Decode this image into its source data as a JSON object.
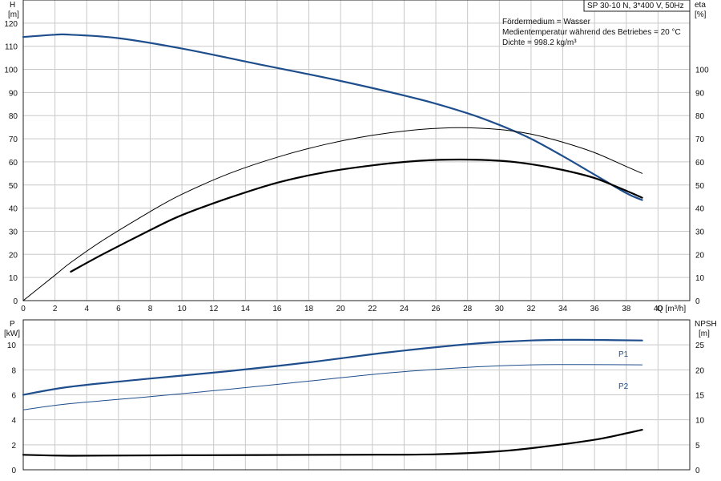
{
  "legend_box": "SP 30-10 N, 3*400 V, 50Hz",
  "info_lines": [
    "Fördermedium = Wasser",
    "Medientemperatur während des Betriebes = 20 °C",
    "Dichte = 998.2 kg/m³"
  ],
  "chart_data": [
    {
      "type": "line",
      "panel": "top",
      "xlabel": "Q [m³/h]",
      "ylabel_left": [
        "H",
        "[m]"
      ],
      "ylabel_right": [
        "eta",
        "[%]"
      ],
      "xlim": [
        0,
        42
      ],
      "ylim_left": [
        0,
        130
      ],
      "ylim_right": [
        0,
        130
      ],
      "x_ticks": [
        0,
        2,
        4,
        6,
        8,
        10,
        12,
        14,
        16,
        18,
        20,
        22,
        24,
        26,
        28,
        30,
        32,
        34,
        36,
        38,
        40
      ],
      "y_ticks_left": [
        0,
        10,
        20,
        30,
        40,
        50,
        60,
        70,
        80,
        90,
        100,
        110,
        120
      ],
      "y_ticks_right": [
        0,
        10,
        20,
        30,
        40,
        50,
        60,
        70,
        80,
        90,
        100
      ],
      "grid": true,
      "series": [
        {
          "color": "#1f4e8c",
          "width": 2.2,
          "points": [
            [
              0,
              114
            ],
            [
              2,
              115
            ],
            [
              3,
              115
            ],
            [
              6,
              113.5
            ],
            [
              10,
              109
            ],
            [
              15,
              102
            ],
            [
              20,
              95
            ],
            [
              25,
              87
            ],
            [
              28,
              81
            ],
            [
              30,
              76
            ],
            [
              32,
              70
            ],
            [
              34,
              62.5
            ],
            [
              36,
              54.5
            ],
            [
              38,
              46.5
            ],
            [
              39,
              43.5
            ]
          ]
        },
        {
          "color": "#000000",
          "width": 1.0,
          "points": [
            [
              0,
              0
            ],
            [
              2,
              11
            ],
            [
              3,
              16.5
            ],
            [
              5,
              26
            ],
            [
              8,
              38.5
            ],
            [
              10,
              46
            ],
            [
              13,
              55
            ],
            [
              16,
              62
            ],
            [
              19,
              67.5
            ],
            [
              22,
              71.5
            ],
            [
              25,
              74
            ],
            [
              27.5,
              74.8
            ],
            [
              30,
              74
            ],
            [
              32,
              72
            ],
            [
              34,
              68.5
            ],
            [
              36,
              64
            ],
            [
              38,
              58
            ],
            [
              39,
              55
            ]
          ]
        },
        {
          "color": "#000000",
          "width": 2.2,
          "points": [
            [
              3,
              12.5
            ],
            [
              5,
              20
            ],
            [
              8,
              30.5
            ],
            [
              10,
              37
            ],
            [
              13,
              44.5
            ],
            [
              16,
              51
            ],
            [
              19,
              55.5
            ],
            [
              22,
              58.5
            ],
            [
              25,
              60.5
            ],
            [
              27.5,
              61
            ],
            [
              30,
              60.5
            ],
            [
              32,
              59
            ],
            [
              34,
              56.5
            ],
            [
              36,
              53
            ],
            [
              38,
              47.5
            ],
            [
              39,
              44.5
            ]
          ]
        }
      ]
    },
    {
      "type": "line",
      "panel": "bottom",
      "ylabel_left": [
        "P",
        "[kW]"
      ],
      "ylabel_right": [
        "NPSH",
        "[m]"
      ],
      "xlim": [
        0,
        42
      ],
      "ylim_left": [
        0,
        12
      ],
      "ylim_right": [
        0,
        30
      ],
      "y_ticks_left": [
        0,
        2,
        4,
        6,
        8,
        10
      ],
      "y_ticks_right": [
        0,
        5,
        10,
        15,
        20,
        25
      ],
      "grid": true,
      "series": [
        {
          "name": "P1",
          "axis": "left",
          "color": "#1f4e8c",
          "width": 2.2,
          "points": [
            [
              0,
              6.0
            ],
            [
              3,
              6.65
            ],
            [
              8,
              7.3
            ],
            [
              13,
              7.9
            ],
            [
              18,
              8.6
            ],
            [
              23,
              9.4
            ],
            [
              28,
              10.05
            ],
            [
              32,
              10.35
            ],
            [
              35,
              10.4
            ],
            [
              39,
              10.35
            ]
          ]
        },
        {
          "name": "P2",
          "axis": "left",
          "color": "#1f4e8c",
          "width": 1.0,
          "points": [
            [
              0,
              4.8
            ],
            [
              3,
              5.3
            ],
            [
              8,
              5.85
            ],
            [
              13,
              6.45
            ],
            [
              18,
              7.1
            ],
            [
              23,
              7.75
            ],
            [
              28,
              8.2
            ],
            [
              32,
              8.4
            ],
            [
              35,
              8.42
            ],
            [
              39,
              8.4
            ]
          ]
        },
        {
          "axis": "right",
          "color": "#000000",
          "width": 2.2,
          "points": [
            [
              0,
              3.0
            ],
            [
              3,
              2.8
            ],
            [
              10,
              2.9
            ],
            [
              20,
              3.0
            ],
            [
              26,
              3.1
            ],
            [
              30,
              3.7
            ],
            [
              33,
              4.7
            ],
            [
              36,
              6.0
            ],
            [
              38,
              7.3
            ],
            [
              39,
              8.0
            ]
          ]
        }
      ]
    }
  ]
}
